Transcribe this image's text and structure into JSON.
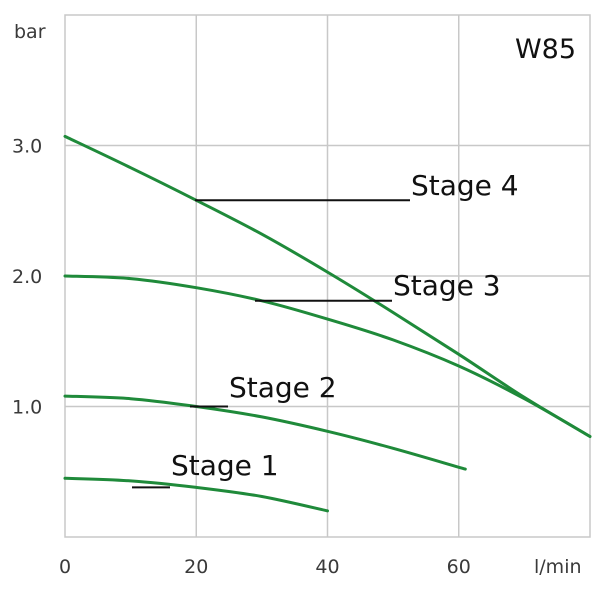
{
  "chart_data": {
    "type": "line",
    "title": "W85",
    "xlabel": "l/min",
    "ylabel": "bar",
    "xlim": [
      0,
      80
    ],
    "ylim": [
      0,
      4
    ],
    "x_ticks": [
      0,
      20,
      40,
      60
    ],
    "x_tick_labels": [
      "0",
      "20",
      "40",
      "60"
    ],
    "y_ticks": [
      1,
      2,
      3
    ],
    "y_tick_labels": [
      "1.0",
      "2.0",
      "3.0"
    ],
    "grid": true,
    "line_color": "#1f8a3a",
    "series": [
      {
        "name": "Stage 1",
        "x": [
          0,
          10,
          20,
          30,
          40
        ],
        "y": [
          0.45,
          0.43,
          0.38,
          0.31,
          0.2
        ],
        "label_at": 20
      },
      {
        "name": "Stage 2",
        "x": [
          0,
          10,
          20,
          30,
          40,
          50,
          61
        ],
        "y": [
          1.08,
          1.06,
          1.0,
          0.92,
          0.81,
          0.68,
          0.52
        ],
        "label_at": 20
      },
      {
        "name": "Stage 3",
        "x": [
          0,
          10,
          20,
          30,
          40,
          50,
          60,
          70,
          80
        ],
        "y": [
          2.0,
          1.98,
          1.91,
          1.81,
          1.67,
          1.51,
          1.31,
          1.06,
          0.77
        ],
        "label_at": 30
      },
      {
        "name": "Stage 4",
        "x": [
          0,
          10,
          20,
          30,
          40,
          50,
          60,
          70,
          80
        ],
        "y": [
          3.07,
          2.83,
          2.58,
          2.32,
          2.03,
          1.72,
          1.4,
          1.07,
          0.77
        ],
        "label_at": 20
      }
    ]
  }
}
